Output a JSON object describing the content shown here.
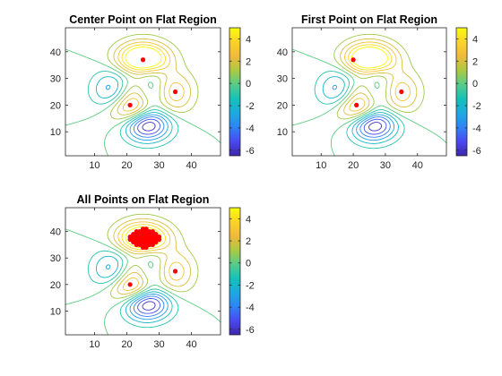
{
  "figure": {
    "background": "#ffffff"
  },
  "colormap": {
    "name": "parula",
    "stops": [
      "#3e26a8",
      "#4949f2",
      "#2f83f5",
      "#1caadf",
      "#14c1b9",
      "#57cc89",
      "#acc942",
      "#f0b93d",
      "#fbd32a",
      "#f9fb0e"
    ]
  },
  "chart_data": [
    {
      "type": "contour",
      "title": "Center Point on Flat Region",
      "xlabel": "",
      "ylabel": "",
      "xlim": [
        1,
        49
      ],
      "ylim": [
        1,
        49
      ],
      "x_ticks": [
        10,
        20,
        30,
        40
      ],
      "y_ticks": [
        10,
        20,
        30,
        40
      ],
      "function": "peaks(49)",
      "contour_levels": [
        -6,
        -5,
        -4,
        -3,
        -2,
        -1,
        0,
        1,
        2,
        3,
        4,
        5
      ],
      "colorbar": {
        "range": [
          -6.5,
          5
        ],
        "ticks": [
          4,
          2,
          0,
          -2,
          -4,
          -6
        ]
      },
      "markers": {
        "color": "#ff0000",
        "points": [
          [
            25,
            37
          ],
          [
            21,
            20
          ],
          [
            35,
            25
          ]
        ]
      }
    },
    {
      "type": "contour",
      "title": "First Point on Flat Region",
      "xlabel": "",
      "ylabel": "",
      "xlim": [
        1,
        49
      ],
      "ylim": [
        1,
        49
      ],
      "x_ticks": [
        10,
        20,
        30,
        40
      ],
      "y_ticks": [
        10,
        20,
        30,
        40
      ],
      "function": "peaks(49)",
      "contour_levels": [
        -6,
        -5,
        -4,
        -3,
        -2,
        -1,
        0,
        1,
        2,
        3,
        4,
        5
      ],
      "colorbar": {
        "range": [
          -6.5,
          5
        ],
        "ticks": [
          4,
          2,
          0,
          -2,
          -4,
          -6
        ]
      },
      "markers": {
        "color": "#ff0000",
        "points": [
          [
            20,
            37
          ],
          [
            21,
            20
          ],
          [
            35,
            25
          ]
        ]
      }
    },
    {
      "type": "contour",
      "title": "All Points on Flat Region",
      "xlabel": "",
      "ylabel": "",
      "xlim": [
        1,
        49
      ],
      "ylim": [
        1,
        49
      ],
      "x_ticks": [
        10,
        20,
        30,
        40
      ],
      "y_ticks": [
        10,
        20,
        30,
        40
      ],
      "function": "peaks(49)",
      "contour_levels": [
        -6,
        -5,
        -4,
        -3,
        -2,
        -1,
        0,
        1,
        2,
        3,
        4,
        5
      ],
      "colorbar": {
        "range": [
          -6.5,
          5
        ],
        "ticks": [
          4,
          2,
          0,
          -2,
          -4,
          -6
        ]
      },
      "markers": {
        "color": "#ff0000",
        "points": [
          [
            21,
            20
          ],
          [
            35,
            25
          ]
        ],
        "filled_region": {
          "center": [
            25.5,
            37.5
          ],
          "rx": 4.5,
          "ry": 3.5
        }
      }
    }
  ]
}
